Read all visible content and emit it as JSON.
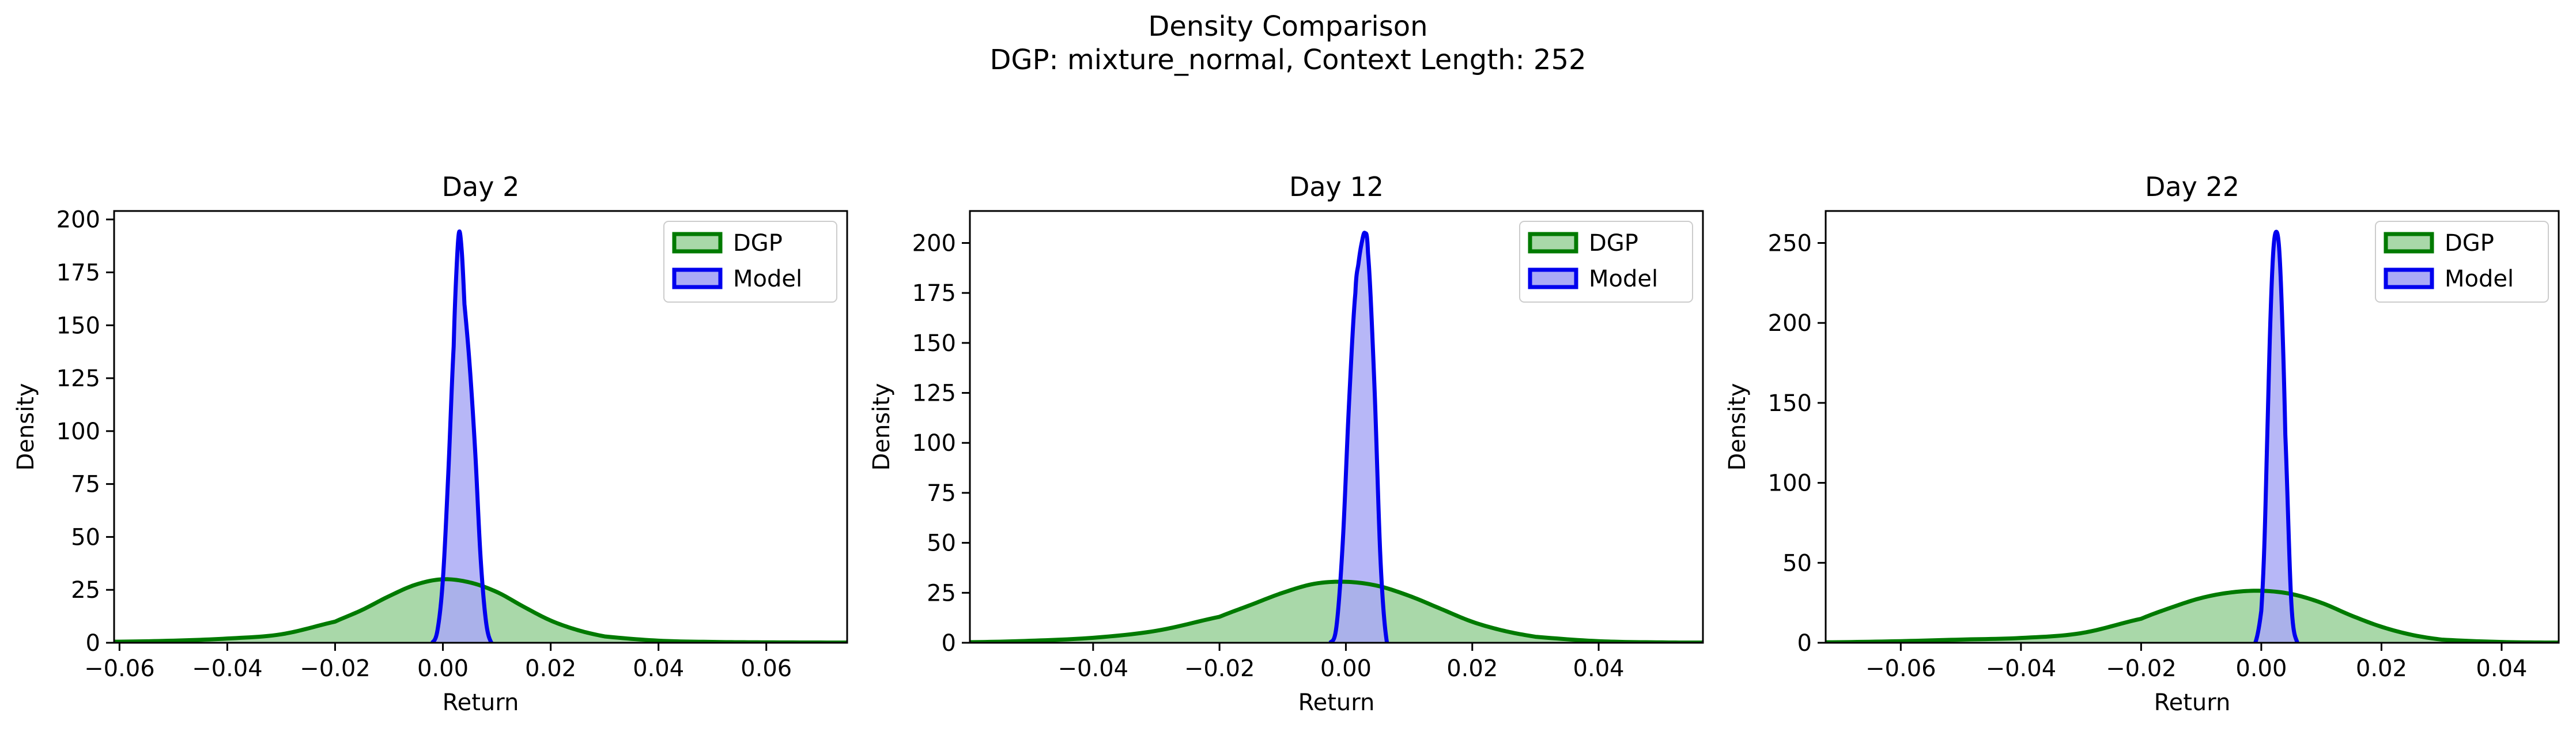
{
  "figure": {
    "title_line1": "Density Comparison",
    "title_line2": "DGP: mixture_normal, Context Length: 252"
  },
  "colors": {
    "dgp_line": "#007a00",
    "dgp_fill": "#a9d8a9",
    "model_line": "#0000ee",
    "model_fill": "#aaaaf6",
    "overlap_fill": "#6f8ec9"
  },
  "chart_data": [
    {
      "type": "area",
      "title": "Day 2",
      "xlabel": "Return",
      "ylabel": "Density",
      "xlim": [
        -0.061,
        0.075
      ],
      "ylim": [
        0,
        204
      ],
      "xticks": [
        -0.06,
        -0.04,
        -0.02,
        0.0,
        0.02,
        0.04,
        0.06
      ],
      "xtick_labels": [
        "−0.06",
        "−0.04",
        "−0.02",
        "0.00",
        "0.02",
        "0.04",
        "0.06"
      ],
      "yticks": [
        0,
        25,
        50,
        75,
        100,
        125,
        150,
        175,
        200
      ],
      "ytick_labels": [
        "0",
        "25",
        "50",
        "75",
        "100",
        "125",
        "150",
        "175",
        "200"
      ],
      "legend_position": "upper right",
      "series": [
        {
          "name": "DGP",
          "x": [
            -0.061,
            -0.05,
            -0.04,
            -0.03,
            -0.02,
            -0.015,
            -0.01,
            -0.005,
            0.0,
            0.005,
            0.01,
            0.015,
            0.02,
            0.025,
            0.03,
            0.04,
            0.05,
            0.06,
            0.075
          ],
          "y": [
            0.5,
            1.0,
            2.0,
            4.0,
            10.0,
            15.5,
            22.0,
            27.5,
            30.0,
            28.5,
            24.0,
            17.0,
            10.5,
            6.0,
            3.0,
            1.0,
            0.4,
            0.2,
            0.1
          ]
        },
        {
          "name": "Model",
          "x": [
            -0.002,
            -0.001,
            0.0,
            0.001,
            0.002,
            0.0025,
            0.003,
            0.0035,
            0.004,
            0.005,
            0.006,
            0.007,
            0.008,
            0.009
          ],
          "y": [
            0,
            6,
            30,
            80,
            140,
            175,
            194,
            185,
            160,
            130,
            90,
            40,
            10,
            0
          ]
        }
      ]
    },
    {
      "type": "area",
      "title": "Day 12",
      "xlabel": "Return",
      "ylabel": "Density",
      "xlim": [
        -0.0595,
        0.0565
      ],
      "ylim": [
        0,
        216
      ],
      "xticks": [
        -0.04,
        -0.02,
        0.0,
        0.02,
        0.04
      ],
      "xtick_labels": [
        "−0.04",
        "−0.02",
        "0.00",
        "0.02",
        "0.04"
      ],
      "yticks": [
        0,
        25,
        50,
        75,
        100,
        125,
        150,
        175,
        200
      ],
      "ytick_labels": [
        "0",
        "25",
        "50",
        "75",
        "100",
        "125",
        "150",
        "175",
        "200"
      ],
      "legend_position": "upper right",
      "series": [
        {
          "name": "DGP",
          "x": [
            -0.0595,
            -0.05,
            -0.04,
            -0.03,
            -0.02,
            -0.015,
            -0.01,
            -0.005,
            0.0,
            0.005,
            0.01,
            0.015,
            0.02,
            0.025,
            0.03,
            0.04,
            0.05,
            0.0565
          ],
          "y": [
            0.3,
            1.0,
            2.5,
            6.0,
            13.0,
            19.0,
            25.0,
            29.5,
            30.5,
            28.5,
            23.5,
            17.0,
            10.5,
            6.0,
            3.0,
            0.8,
            0.2,
            0.1
          ]
        },
        {
          "name": "Model",
          "x": [
            -0.0025,
            -0.0015,
            -0.0005,
            0.0005,
            0.0015,
            0.002,
            0.0025,
            0.003,
            0.0035,
            0.0045,
            0.0055,
            0.0065
          ],
          "y": [
            0,
            8,
            50,
            120,
            175,
            190,
            200,
            205,
            195,
            130,
            40,
            0
          ]
        }
      ]
    },
    {
      "type": "area",
      "title": "Day 22",
      "xlabel": "Return",
      "ylabel": "Density",
      "xlim": [
        -0.0725,
        0.0495
      ],
      "ylim": [
        0,
        270
      ],
      "xticks": [
        -0.06,
        -0.04,
        -0.02,
        0.0,
        0.02,
        0.04
      ],
      "xtick_labels": [
        "−0.06",
        "−0.04",
        "−0.02",
        "0.00",
        "0.02",
        "0.04"
      ],
      "yticks": [
        0,
        50,
        100,
        150,
        200,
        250
      ],
      "ytick_labels": [
        "0",
        "50",
        "100",
        "150",
        "200",
        "250"
      ],
      "legend_position": "upper right",
      "series": [
        {
          "name": "DGP",
          "x": [
            -0.0725,
            -0.06,
            -0.05,
            -0.04,
            -0.03,
            -0.02,
            -0.015,
            -0.01,
            -0.005,
            0.0,
            0.005,
            0.01,
            0.015,
            0.02,
            0.025,
            0.03,
            0.04,
            0.0495
          ],
          "y": [
            0.3,
            1.0,
            2.0,
            3.0,
            6.0,
            15.0,
            22.0,
            28.0,
            31.5,
            32.5,
            30.5,
            25.0,
            17.0,
            10.0,
            5.0,
            2.0,
            0.5,
            0.1
          ]
        },
        {
          "name": "Model",
          "x": [
            -0.001,
            0.0,
            0.0005,
            0.001,
            0.0015,
            0.002,
            0.0025,
            0.003,
            0.0035,
            0.004,
            0.005,
            0.006
          ],
          "y": [
            0,
            20,
            60,
            130,
            200,
            245,
            257,
            245,
            200,
            130,
            25,
            0
          ]
        }
      ]
    }
  ]
}
